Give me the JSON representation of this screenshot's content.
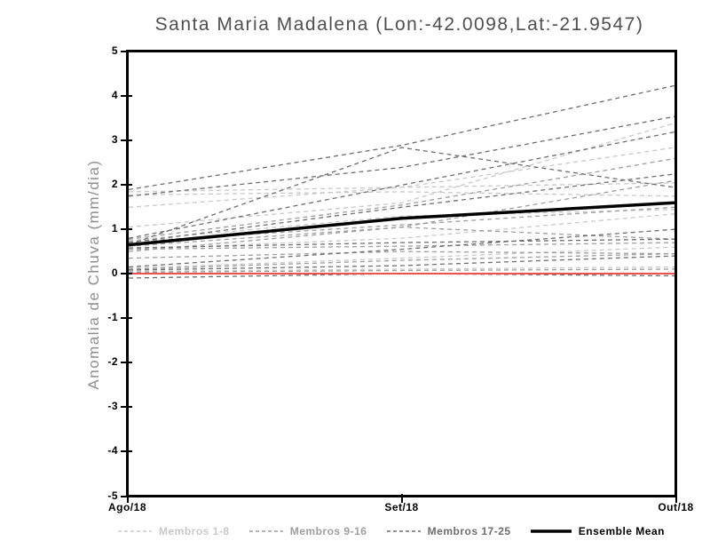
{
  "chart_data": {
    "type": "line",
    "title": "Santa Maria Madalena (Lon:-42.0098,Lat:-21.9547)",
    "ylabel": "Anomalia de Chuva (mm/dia)",
    "x_categories": [
      "Ago/18",
      "Set/18",
      "Out/18"
    ],
    "ylim": [
      -5,
      5
    ],
    "y_ticks": [
      5,
      4,
      3,
      2,
      1,
      0,
      -1,
      -2,
      -3,
      -4,
      -5
    ],
    "grid": false,
    "legend_position": "bottom",
    "zero_line": {
      "name": "zero-reference",
      "color": "#ee5250",
      "values": [
        0,
        0,
        0
      ]
    },
    "ensemble_mean": {
      "name": "Ensemble Mean",
      "color": "#000000",
      "values": [
        0.65,
        1.25,
        1.6
      ]
    },
    "groups": [
      {
        "name": "Membros 1-8",
        "color": "#c9c9c9",
        "line_style": "dashed",
        "series": [
          [
            1.85,
            1.95,
            2.05
          ],
          [
            1.78,
            1.85,
            1.75
          ],
          [
            1.5,
            1.95,
            2.85
          ],
          [
            1.05,
            1.6,
            3.4
          ],
          [
            0.75,
            1.3,
            1.45
          ],
          [
            0.55,
            0.8,
            1.35
          ],
          [
            0.12,
            0.35,
            0.6
          ],
          [
            0.05,
            0.1,
            0.15
          ]
        ]
      },
      {
        "name": "Membros 9-16",
        "color": "#9e9e9e",
        "line_style": "dashed",
        "series": [
          [
            0.78,
            1.55,
            2.6
          ],
          [
            0.72,
            1.1,
            1.5
          ],
          [
            0.62,
            1.05,
            0.78
          ],
          [
            0.55,
            0.62,
            0.7
          ],
          [
            0.5,
            1.05,
            2.1
          ],
          [
            0.35,
            0.5,
            0.45
          ],
          [
            0.1,
            0.3,
            0.45
          ],
          [
            0.03,
            0.07,
            0.1
          ]
        ]
      },
      {
        "name": "Membros 17-25",
        "color": "#6e6e6e",
        "line_style": "dashed",
        "series": [
          [
            1.9,
            2.9,
            4.25
          ],
          [
            1.75,
            2.4,
            3.55
          ],
          [
            0.8,
            2.0,
            3.2
          ],
          [
            0.7,
            1.5,
            2.25
          ],
          [
            0.65,
            2.85,
            1.95
          ],
          [
            0.58,
            0.7,
            0.78
          ],
          [
            0.15,
            0.55,
            1.0
          ],
          [
            0.08,
            0.18,
            0.4
          ],
          [
            -0.1,
            0.0,
            -0.05
          ]
        ]
      }
    ],
    "legend": [
      {
        "label": "Membros 1-8",
        "color": "#c9c9c9",
        "style": "dashed"
      },
      {
        "label": "Membros 9-16",
        "color": "#9e9e9e",
        "style": "dashed"
      },
      {
        "label": "Membros 17-25",
        "color": "#6e6e6e",
        "style": "dashed"
      },
      {
        "label": "Ensemble Mean",
        "color": "#000000",
        "style": "solid"
      }
    ]
  }
}
